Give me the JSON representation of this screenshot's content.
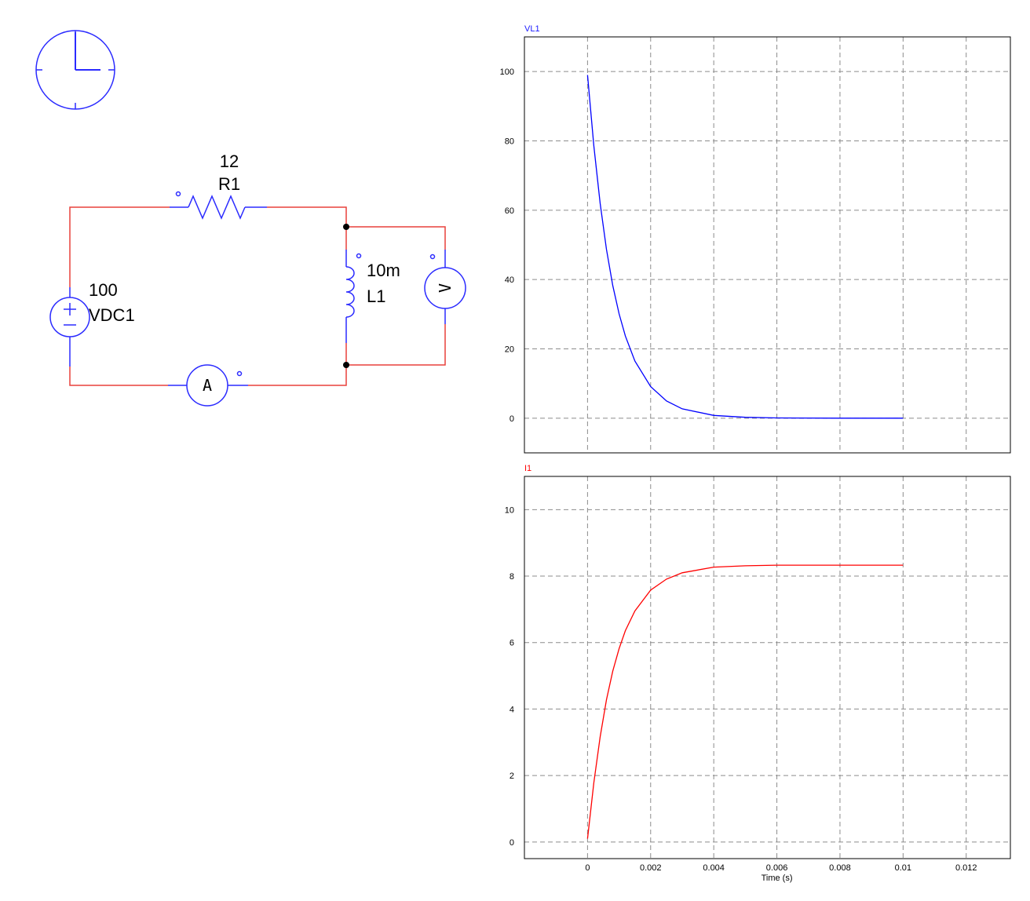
{
  "schematic": {
    "resistor": {
      "value": "12",
      "name": "R1"
    },
    "inductor": {
      "value": "10m",
      "name": "L1"
    },
    "source": {
      "value": "100",
      "name": "VDC1"
    },
    "ammeter": {
      "glyph": "A"
    },
    "voltmeter": {
      "glyph": "V"
    },
    "colors": {
      "wire": "#e8413c",
      "component": "#2b2bff",
      "node": "#000000"
    }
  },
  "chart_data": [
    {
      "type": "line",
      "title": "VL1",
      "title_color": "#1a1aff",
      "xlabel": "",
      "ylabel": "",
      "xlim": [
        -0.002,
        0.0134
      ],
      "ylim": [
        -10,
        110
      ],
      "x_ticks": [
        0,
        0.002,
        0.004,
        0.006,
        0.008,
        0.01,
        0.012
      ],
      "x_tick_labels": [
        "",
        "",
        "",
        "",
        "",
        "",
        ""
      ],
      "y_ticks": [
        0,
        20,
        40,
        60,
        80,
        100
      ],
      "y_tick_labels": [
        "0",
        "20",
        "40",
        "60",
        "80",
        "100"
      ],
      "grid": true,
      "series": [
        {
          "name": "VL1",
          "color": "#0000ff",
          "x": [
            0,
            0.0002,
            0.0004,
            0.0006,
            0.0008,
            0.001,
            0.0012,
            0.0015,
            0.002,
            0.0025,
            0.003,
            0.004,
            0.005,
            0.006,
            0.008,
            0.01
          ],
          "y": [
            99,
            78.6,
            61.9,
            48.7,
            38.3,
            30.1,
            23.7,
            16.5,
            9.1,
            5.0,
            2.7,
            0.8,
            0.25,
            0.07,
            0.01,
            0
          ]
        }
      ]
    },
    {
      "type": "line",
      "title": "I1",
      "title_color": "#ff0000",
      "xlabel": "Time (s)",
      "ylabel": "",
      "xlim": [
        -0.002,
        0.0134
      ],
      "ylim": [
        -0.5,
        11
      ],
      "x_ticks": [
        0,
        0.002,
        0.004,
        0.006,
        0.008,
        0.01,
        0.012
      ],
      "x_tick_labels": [
        "0",
        "0.002",
        "0.004",
        "0.006",
        "0.008",
        "0.01",
        "0.012"
      ],
      "y_ticks": [
        0,
        2,
        4,
        6,
        8,
        10
      ],
      "y_tick_labels": [
        "0",
        "2",
        "4",
        "6",
        "8",
        "10"
      ],
      "grid": true,
      "series": [
        {
          "name": "I1",
          "color": "#ff0000",
          "x": [
            0,
            0.0002,
            0.0004,
            0.0006,
            0.0008,
            0.001,
            0.0012,
            0.0015,
            0.002,
            0.0025,
            0.003,
            0.004,
            0.005,
            0.006,
            0.008,
            0.01
          ],
          "y": [
            0.1,
            1.78,
            3.17,
            4.28,
            5.14,
            5.82,
            6.36,
            6.95,
            7.58,
            7.91,
            8.1,
            8.27,
            8.31,
            8.33,
            8.33,
            8.33
          ]
        }
      ]
    }
  ]
}
